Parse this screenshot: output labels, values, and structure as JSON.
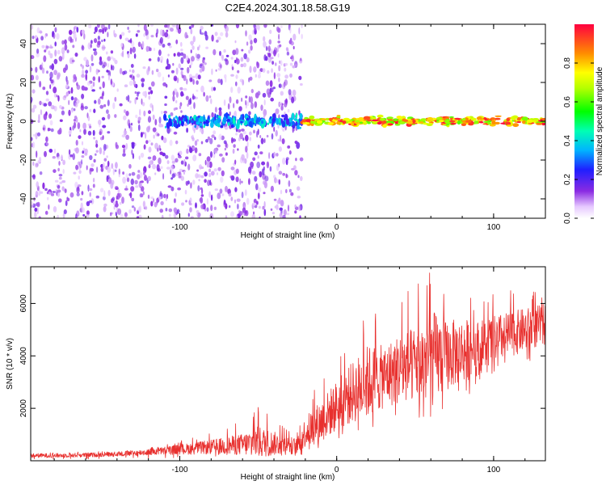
{
  "title": "C2E4.2024.301.18.58.G19",
  "colors": {
    "snr_line": "#e8302e",
    "scatter_low": "#7b2cff",
    "axis": "#000000",
    "background": "#ffffff"
  },
  "chart_data": [
    {
      "type": "heatmap",
      "xlabel": "Height of straight line (km)",
      "ylabel": "Frequency (Hz)",
      "xlim": [
        -195,
        133
      ],
      "ylim": [
        -50,
        50
      ],
      "xticks": [
        -100,
        0,
        100
      ],
      "xtick_labels": [
        "-100",
        "0",
        "100"
      ],
      "yticks": [
        -40,
        -20,
        0,
        20,
        40
      ],
      "ytick_labels": [
        "-40",
        "-20",
        "0",
        "20",
        "40"
      ],
      "colorbar": {
        "label": "Normalized spectral amplitude",
        "range": [
          0,
          1
        ],
        "ticks": [
          0.0,
          0.2,
          0.4,
          0.6,
          0.8
        ],
        "tick_labels": [
          "0.0",
          "0.2",
          "0.4",
          "0.6",
          "0.8"
        ],
        "colormap": "rainbow (violet → blue → cyan → green → yellow → orange → red)"
      },
      "regions": [
        {
          "x_range": [
            -195,
            -22
          ],
          "y_range": [
            -50,
            50
          ],
          "pattern": "scattered low-amplitude noise",
          "amplitude": [
            0.0,
            0.15
          ]
        },
        {
          "x_range": [
            -110,
            -22
          ],
          "y_range": [
            -4,
            4
          ],
          "pattern": "band near 0 Hz",
          "amplitude": [
            0.2,
            0.45
          ]
        },
        {
          "x_range": [
            -22,
            133
          ],
          "y_range": [
            -3,
            3
          ],
          "pattern": "narrow strong band at 0 Hz",
          "amplitude": [
            0.6,
            1.0
          ]
        }
      ],
      "grid": false
    },
    {
      "type": "line",
      "xlabel": "Height of straight line (km)",
      "ylabel": "SNR (10 * v/v)",
      "xlim": [
        -195,
        133
      ],
      "ylim": [
        0,
        7400
      ],
      "xticks": [
        -100,
        0,
        100
      ],
      "xtick_labels": [
        "-100",
        "0",
        "100"
      ],
      "yticks": [
        2000,
        4000,
        6000
      ],
      "ytick_labels": [
        "2000",
        "4000",
        "6000"
      ],
      "series_envelope": {
        "x": [
          -195,
          -180,
          -160,
          -140,
          -120,
          -100,
          -80,
          -60,
          -50,
          -40,
          -30,
          -25,
          -20,
          -15,
          -10,
          0,
          10,
          20,
          30,
          40,
          50,
          60,
          70,
          80,
          90,
          100,
          110,
          120,
          133
        ],
        "mean": [
          200,
          200,
          220,
          250,
          330,
          430,
          520,
          620,
          700,
          660,
          580,
          560,
          1100,
          1300,
          1500,
          2100,
          2600,
          3000,
          3200,
          3500,
          3700,
          3900,
          4000,
          4200,
          4300,
          4600,
          4800,
          5000,
          5200
        ],
        "max": [
          330,
          340,
          350,
          380,
          500,
          760,
          1050,
          1550,
          2250,
          1700,
          1300,
          1100,
          2200,
          2700,
          3200,
          3800,
          4900,
          5900,
          5500,
          6300,
          6700,
          7400,
          6900,
          6500,
          6300,
          6400,
          6500,
          6500,
          6600
        ],
        "min": [
          50,
          50,
          60,
          70,
          80,
          100,
          110,
          150,
          150,
          150,
          130,
          100,
          200,
          300,
          400,
          500,
          900,
          1000,
          1400,
          1700,
          1900,
          900,
          2300,
          2300,
          2700,
          3200,
          3500,
          3700,
          3900
        ]
      },
      "grid": false
    }
  ]
}
